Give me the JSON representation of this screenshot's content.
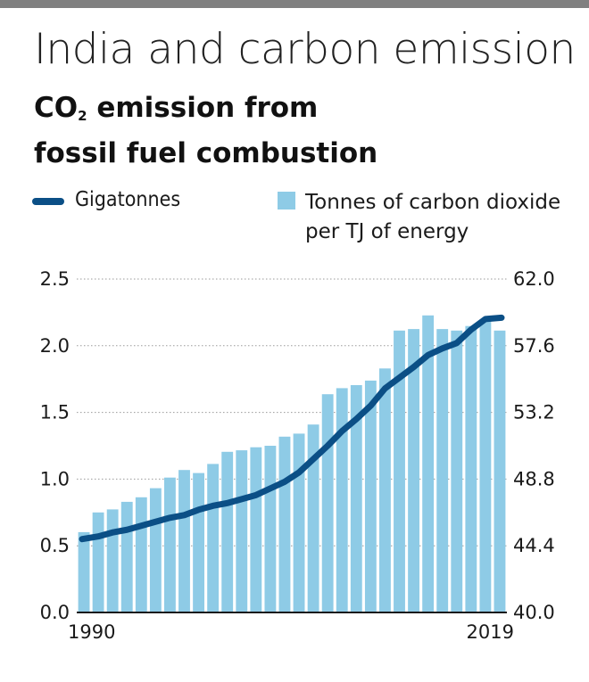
{
  "headline": "India and carbon emission",
  "subtitle": {
    "prefix": "CO",
    "subscript": "2",
    "rest_line1": " emission from",
    "line2": "fossil fuel combustion"
  },
  "chart_data": {
    "type": "bar+line",
    "legend": {
      "line_label": "Gigatonnes",
      "bar_label_line1": "Tonnes of carbon dioxide",
      "bar_label_line2": "per TJ of energy"
    },
    "x_tick_labels": [
      "1990",
      "2019"
    ],
    "years": [
      1990,
      1991,
      1992,
      1993,
      1994,
      1995,
      1996,
      1997,
      1998,
      1999,
      2000,
      2001,
      2002,
      2003,
      2004,
      2005,
      2006,
      2007,
      2008,
      2009,
      2010,
      2011,
      2012,
      2013,
      2014,
      2015,
      2016,
      2017,
      2018,
      2019
    ],
    "left_axis": {
      "min": 0,
      "max": 2.5,
      "ticks": [
        "0.0",
        "0.5",
        "1.0",
        "1.5",
        "2.0",
        "2.5"
      ]
    },
    "right_axis": {
      "min": 40.0,
      "max": 62.0,
      "ticks": [
        "40.0",
        "44.4",
        "48.8",
        "53.2",
        "57.6",
        "62.0"
      ]
    },
    "series": [
      {
        "name": "Gigatonnes",
        "type": "line",
        "axis": "left",
        "color": "#0b4f86",
        "values": [
          0.55,
          0.57,
          0.6,
          0.62,
          0.65,
          0.68,
          0.71,
          0.73,
          0.77,
          0.8,
          0.82,
          0.85,
          0.88,
          0.93,
          0.98,
          1.05,
          1.15,
          1.25,
          1.36,
          1.45,
          1.55,
          1.68,
          1.76,
          1.84,
          1.93,
          1.98,
          2.02,
          2.12,
          2.2,
          2.21
        ]
      },
      {
        "name": "Tonnes of carbon dioxide per TJ of energy",
        "type": "bar",
        "axis": "right",
        "color": "#8ecbe6",
        "values": [
          45.3,
          46.6,
          46.8,
          47.3,
          47.6,
          48.2,
          48.9,
          49.4,
          49.2,
          49.8,
          50.6,
          50.7,
          50.9,
          51.0,
          51.6,
          51.8,
          52.4,
          54.4,
          54.8,
          55.0,
          55.3,
          56.1,
          58.6,
          58.7,
          59.6,
          58.7,
          58.6,
          58.9,
          59.2,
          58.6
        ]
      }
    ],
    "grid": "dotted horizontal"
  },
  "colors": {
    "top_rule": "#808080",
    "line": "#0b4f86",
    "bar": "#8ecbe6"
  }
}
